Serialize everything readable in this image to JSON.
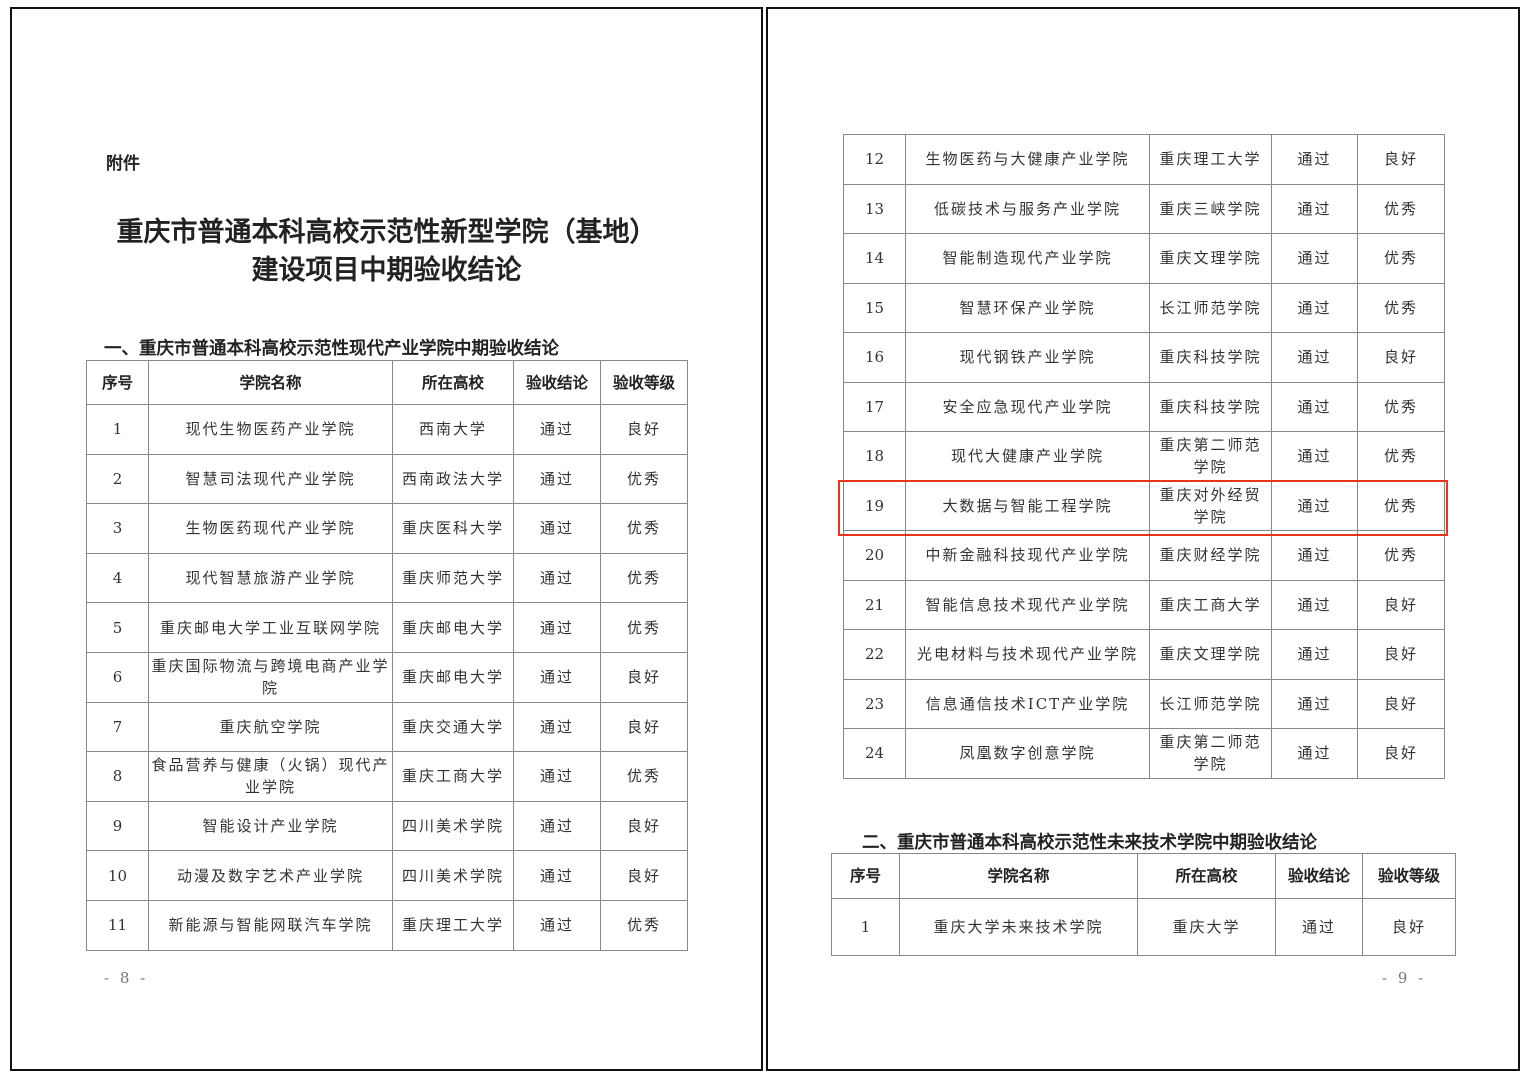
{
  "page1": {
    "attachment": "附件",
    "title_line1": "重庆市普通本科高校示范性新型学院（基地）",
    "title_line2": "建设项目中期验收结论",
    "section1_title": "一、重庆市普通本科高校示范性现代产业学院中期验收结论",
    "page_number": "- 8 -"
  },
  "page2": {
    "section2_title": "二、重庆市普通本科高校示范性未来技术学院中期验收结论",
    "page_number": "- 9 -"
  },
  "headers": [
    "序号",
    "学院名称",
    "所在高校",
    "验收结论",
    "验收等级"
  ],
  "highlight_color": "#e8341c",
  "table1_rows": [
    [
      "1",
      "现代生物医药产业学院",
      "西南大学",
      "通过",
      "良好"
    ],
    [
      "2",
      "智慧司法现代产业学院",
      "西南政法大学",
      "通过",
      "优秀"
    ],
    [
      "3",
      "生物医药现代产业学院",
      "重庆医科大学",
      "通过",
      "优秀"
    ],
    [
      "4",
      "现代智慧旅游产业学院",
      "重庆师范大学",
      "通过",
      "优秀"
    ],
    [
      "5",
      "重庆邮电大学工业互联网学院",
      "重庆邮电大学",
      "通过",
      "优秀"
    ],
    [
      "6",
      "重庆国际物流与跨境电商产业学院",
      "重庆邮电大学",
      "通过",
      "良好"
    ],
    [
      "7",
      "重庆航空学院",
      "重庆交通大学",
      "通过",
      "良好"
    ],
    [
      "8",
      "食品营养与健康（火锅）现代产业学院",
      "重庆工商大学",
      "通过",
      "优秀"
    ],
    [
      "9",
      "智能设计产业学院",
      "四川美术学院",
      "通过",
      "良好"
    ],
    [
      "10",
      "动漫及数字艺术产业学院",
      "四川美术学院",
      "通过",
      "良好"
    ],
    [
      "11",
      "新能源与智能网联汽车学院",
      "重庆理工大学",
      "通过",
      "优秀"
    ]
  ],
  "table1_cont_rows": [
    [
      "12",
      "生物医药与大健康产业学院",
      "重庆理工大学",
      "通过",
      "良好"
    ],
    [
      "13",
      "低碳技术与服务产业学院",
      "重庆三峡学院",
      "通过",
      "优秀"
    ],
    [
      "14",
      "智能制造现代产业学院",
      "重庆文理学院",
      "通过",
      "优秀"
    ],
    [
      "15",
      "智慧环保产业学院",
      "长江师范学院",
      "通过",
      "优秀"
    ],
    [
      "16",
      "现代钢铁产业学院",
      "重庆科技学院",
      "通过",
      "良好"
    ],
    [
      "17",
      "安全应急现代产业学院",
      "重庆科技学院",
      "通过",
      "优秀"
    ],
    [
      "18",
      "现代大健康产业学院",
      "重庆第二师范学院",
      "通过",
      "优秀"
    ],
    [
      "19",
      "大数据与智能工程学院",
      "重庆对外经贸学院",
      "通过",
      "优秀"
    ],
    [
      "20",
      "中新金融科技现代产业学院",
      "重庆财经学院",
      "通过",
      "优秀"
    ],
    [
      "21",
      "智能信息技术现代产业学院",
      "重庆工商大学",
      "通过",
      "良好"
    ],
    [
      "22",
      "光电材料与技术现代产业学院",
      "重庆文理学院",
      "通过",
      "良好"
    ],
    [
      "23",
      "信息通信技术ICT产业学院",
      "长江师范学院",
      "通过",
      "良好"
    ],
    [
      "24",
      "凤凰数字创意学院",
      "重庆第二师范学院",
      "通过",
      "良好"
    ]
  ],
  "table2_rows": [
    [
      "1",
      "重庆大学未来技术学院",
      "重庆大学",
      "通过",
      "良好"
    ]
  ]
}
